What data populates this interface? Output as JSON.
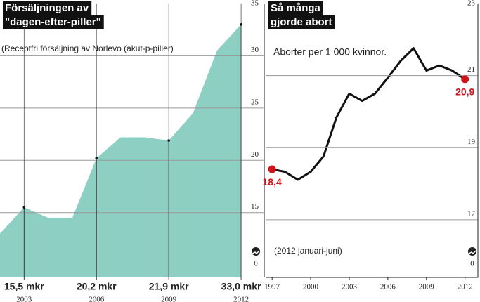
{
  "chart_data": [
    {
      "type": "area",
      "title_lines": [
        "Försäljningen av",
        "\"dagen-efter-piller\""
      ],
      "subtitle": "(Receptfri försäljning av Norlevo (akut-p-piller)",
      "x": [
        2002,
        2003,
        2004,
        2005,
        2006,
        2007,
        2008,
        2009,
        2010,
        2011,
        2012
      ],
      "values": [
        13.0,
        15.5,
        14.5,
        14.5,
        20.2,
        22.2,
        22.2,
        21.9,
        24.5,
        30.5,
        33.0
      ],
      "value_labels": [
        null,
        "15,5 mkr",
        null,
        null,
        "20,2 mkr",
        null,
        null,
        "21,9 mkr",
        null,
        null,
        "33,0 mkr"
      ],
      "xlim": [
        2002,
        2012.93
      ],
      "xticks": [
        2003,
        2006,
        2009,
        2012
      ],
      "ylim": [
        8.8,
        35
      ],
      "yticks": [
        15,
        20,
        25,
        30,
        35
      ],
      "axis_break_label": "0",
      "color": "#8ecfc4",
      "grid": true
    },
    {
      "type": "line",
      "title_lines": [
        "Så många",
        "gjorde abort"
      ],
      "subtitle": "Aborter per 1 000 kvinnor.",
      "note": "(2012 januari-juni)",
      "x": [
        1997,
        1998,
        1999,
        2000,
        2001,
        2002,
        2003,
        2004,
        2005,
        2006,
        2007,
        2008,
        2009,
        2010,
        2011,
        2012
      ],
      "values": [
        18.4,
        18.33,
        18.11,
        18.33,
        18.76,
        19.84,
        20.5,
        20.3,
        20.5,
        20.94,
        21.41,
        21.76,
        21.14,
        21.28,
        21.14,
        20.9
      ],
      "value_labels": [
        "18,4",
        null,
        null,
        null,
        null,
        null,
        null,
        null,
        null,
        null,
        null,
        null,
        null,
        null,
        null,
        "20,9"
      ],
      "xlim": [
        1996.5,
        2013
      ],
      "xticks": [
        1997,
        2000,
        2003,
        2006,
        2009,
        2012
      ],
      "ylim": [
        15.4,
        23
      ],
      "yticks": [
        17,
        19,
        21,
        23
      ],
      "axis_break_label": "0",
      "color": "#111111",
      "marker_color": "#d0121b",
      "grid": true
    }
  ]
}
